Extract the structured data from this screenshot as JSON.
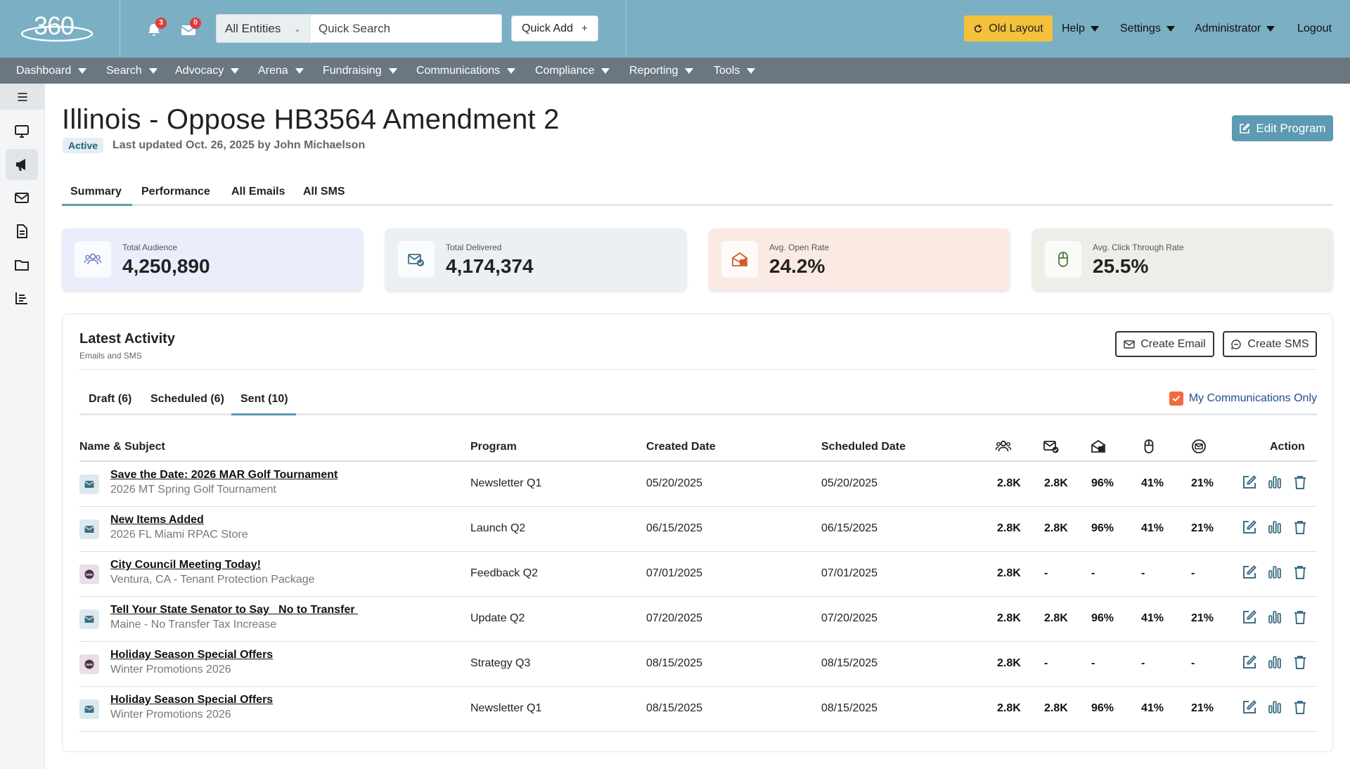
{
  "topbar": {
    "logo_text": "360",
    "notifications_count": "3",
    "messages_count": "0",
    "entity_select": "All Entities",
    "search_placeholder": "Quick Search",
    "quick_add_label": "Quick Add",
    "old_layout_label": "Old Layout",
    "help_label": "Help",
    "settings_label": "Settings",
    "admin_label": "Administrator",
    "logout_label": "Logout",
    "accent": "#7aafc4",
    "old_layout_color": "#f3c13a"
  },
  "nav": [
    "Dashboard",
    "Search",
    "Advocacy",
    "Arena",
    "Fundraising",
    "Communications",
    "Compliance",
    "Reporting",
    "Tools"
  ],
  "sidebar": {
    "icons": [
      "menu-icon",
      "monitor-icon",
      "megaphone-icon",
      "envelope-icon",
      "document-icon",
      "folder-icon",
      "bar-chart-icon"
    ]
  },
  "header": {
    "title": "Illinois - Oppose HB3564 Amendment 2",
    "status": "Active",
    "last_updated": "Last updated Oct. 26, 2025 by John Michaelson",
    "edit_label": "Edit Program"
  },
  "page_tabs": [
    "Summary",
    "Performance",
    "All Emails",
    "All SMS"
  ],
  "kpis": [
    {
      "label": "Total Audience",
      "value": "4,250,890",
      "bg": "#eaedfb",
      "icon": "people-icon",
      "icon_color": "#7c86c4"
    },
    {
      "label": "Total Delivered",
      "value": "4,174,374",
      "bg": "#eaf0f3",
      "icon": "mail-check-icon",
      "icon_color": "#3f6f86"
    },
    {
      "label": "Avg. Open Rate",
      "value": "24.2%",
      "bg": "#fbeae4",
      "icon": "open-mail-icon",
      "icon_color": "#d35a2e"
    },
    {
      "label": "Avg. Click Through Rate",
      "value": "25.5%",
      "bg": "#ebefe8",
      "icon": "mouse-icon",
      "icon_color": "#4d7a3a"
    }
  ],
  "activity": {
    "title": "Latest Activity",
    "subtitle": "Emails and SMS",
    "create_email": "Create Email",
    "create_sms": "Create SMS",
    "tabs": [
      "Draft (6)",
      "Scheduled (6)",
      "Sent (10)"
    ],
    "my_comms_label": "My Communications Only",
    "columns": {
      "name": "Name & Subject",
      "program": "Program",
      "created": "Created Date",
      "scheduled": "Scheduled Date",
      "action": "Action"
    },
    "rows": [
      {
        "type": "email",
        "name": "Save the Date: 2026 MAR Golf Tournament",
        "subject": "2026 MT Spring Golf Tournament",
        "program": "Newsletter Q1",
        "created": "05/20/2025",
        "scheduled": "05/20/2025",
        "audience": "2.8K",
        "delivered": "2.8K",
        "open": "96%",
        "click": "41%",
        "unsub": "21%"
      },
      {
        "type": "email",
        "name": "New Items Added",
        "subject": "2026 FL Miami RPAC Store",
        "program": "Launch Q2",
        "created": "06/15/2025",
        "scheduled": "06/15/2025",
        "audience": "2.8K",
        "delivered": "2.8K",
        "open": "96%",
        "click": "41%",
        "unsub": "21%"
      },
      {
        "type": "sms",
        "name": "City Council Meeting Today!",
        "subject": "Ventura, CA - Tenant Protection Package",
        "program": "Feedback Q2",
        "created": "07/01/2025",
        "scheduled": "07/01/2025",
        "audience": "2.8K",
        "delivered": "-",
        "open": "-",
        "click": "-",
        "unsub": "-"
      },
      {
        "type": "email",
        "name": "Tell Your State Senator to Say   No to Transfer ",
        "subject": "Maine - No Transfer Tax Increase",
        "program": "Update Q2",
        "created": "07/20/2025",
        "scheduled": "07/20/2025",
        "audience": "2.8K",
        "delivered": "2.8K",
        "open": "96%",
        "click": "41%",
        "unsub": "21%"
      },
      {
        "type": "sms",
        "name": "Holiday Season Special Offers",
        "subject": "Winter Promotions 2026",
        "program": "Strategy Q3",
        "created": "08/15/2025",
        "scheduled": "08/15/2025",
        "audience": "2.8K",
        "delivered": "-",
        "open": "-",
        "click": "-",
        "unsub": "-"
      },
      {
        "type": "email",
        "name": "Holiday Season Special Offers",
        "subject": "Winter Promotions 2026",
        "program": "Newsletter Q1",
        "created": "08/15/2025",
        "scheduled": "08/15/2025",
        "audience": "2.8K",
        "delivered": "2.8K",
        "open": "96%",
        "click": "41%",
        "unsub": "21%"
      }
    ]
  }
}
